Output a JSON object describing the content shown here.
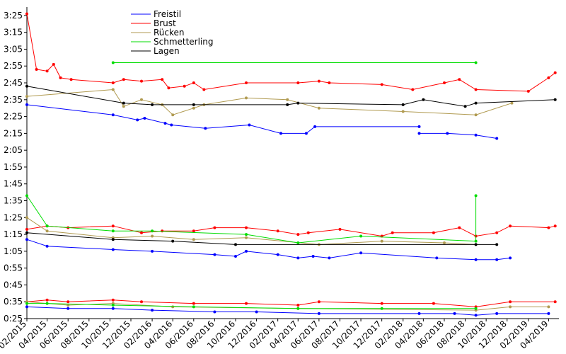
{
  "chart_data": {
    "type": "line",
    "title": "",
    "xlabel": "",
    "ylabel": "",
    "grid": false,
    "legend_placement": "top-left",
    "x_range": [
      "2015-02-01",
      "2019-05-01"
    ],
    "y_range": [
      "0:25",
      "3:30"
    ],
    "x_ticks": [
      "02/2015",
      "04/2015",
      "06/2015",
      "08/2015",
      "10/2015",
      "12/2015",
      "02/2016",
      "04/2016",
      "06/2016",
      "08/2016",
      "10/2016",
      "12/2016",
      "02/2017",
      "04/2017",
      "06/2017",
      "08/2017",
      "10/2017",
      "12/2017",
      "02/2018",
      "04/2018",
      "06/2018",
      "08/2018",
      "10/2018",
      "12/2018",
      "02/2019",
      "04/2019"
    ],
    "y_ticks": [
      "0:25",
      "0:35",
      "0:45",
      "0:55",
      "1:05",
      "1:15",
      "1:25",
      "1:35",
      "1:45",
      "1:55",
      "2:05",
      "2:15",
      "2:25",
      "2:35",
      "2:45",
      "2:55",
      "3:05",
      "3:15",
      "3:25"
    ],
    "series": [
      {
        "name": "Freistil",
        "color": "#0000ff",
        "segments": [
          [
            [
              "2015-02-01",
              "2:32"
            ],
            [
              "2015-10-10",
              "2:26"
            ],
            [
              "2015-12-20",
              "2:23"
            ],
            [
              "2016-01-10",
              "2:24"
            ],
            [
              "2016-03-10",
              "2:21"
            ],
            [
              "2016-03-28",
              "2:20"
            ],
            [
              "2016-07-05",
              "2:18"
            ],
            [
              "2016-11-10",
              "2:20"
            ],
            [
              "2017-02-10",
              "2:15"
            ],
            [
              "2017-04-25",
              "2:15"
            ],
            [
              "2017-05-20",
              "2:19"
            ],
            [
              "2018-03-20",
              "2:19"
            ]
          ],
          [
            [
              "2018-03-20",
              "2:15"
            ],
            [
              "2018-06-10",
              "2:15"
            ],
            [
              "2018-09-01",
              "2:14"
            ],
            [
              "2018-11-01",
              "2:12"
            ]
          ],
          [
            [
              "2015-02-01",
              "1:12"
            ],
            [
              "2015-04-01",
              "1:08"
            ],
            [
              "2015-10-10",
              "1:06"
            ],
            [
              "2016-02-01",
              "1:05"
            ],
            [
              "2016-08-01",
              "1:03"
            ],
            [
              "2016-10-01",
              "1:02"
            ],
            [
              "2016-11-01",
              "1:05"
            ],
            [
              "2017-02-01",
              "1:03"
            ],
            [
              "2017-04-01",
              "1:01"
            ],
            [
              "2017-05-15",
              "1:02"
            ],
            [
              "2017-07-01",
              "1:01"
            ],
            [
              "2017-10-01",
              "1:04"
            ],
            [
              "2018-05-10",
              "1:01"
            ],
            [
              "2018-09-01",
              "1:00"
            ],
            [
              "2018-11-01",
              "1:00"
            ],
            [
              "2018-12-10",
              "1:01"
            ]
          ],
          [
            [
              "2015-02-01",
              "0:32"
            ],
            [
              "2015-06-01",
              "0:31"
            ],
            [
              "2015-10-10",
              "0:31"
            ],
            [
              "2016-02-01",
              "0:30"
            ],
            [
              "2016-08-01",
              "0:29"
            ],
            [
              "2016-12-01",
              "0:29"
            ],
            [
              "2017-06-01",
              "0:28"
            ],
            [
              "2018-03-20",
              "0:28"
            ],
            [
              "2018-07-01",
              "0:28"
            ],
            [
              "2018-09-01",
              "0:27"
            ],
            [
              "2018-11-01",
              "0:28"
            ],
            [
              "2019-04-01",
              "0:28"
            ]
          ]
        ]
      },
      {
        "name": "Brust",
        "color": "#ff0000",
        "segments": [
          [
            [
              "2015-02-01",
              "3:26"
            ],
            [
              "2015-03-01",
              "2:53"
            ],
            [
              "2015-04-01",
              "2:52"
            ],
            [
              "2015-04-20",
              "2:56"
            ],
            [
              "2015-05-10",
              "2:48"
            ],
            [
              "2015-06-10",
              "2:47"
            ],
            [
              "2015-10-10",
              "2:45"
            ],
            [
              "2015-11-10",
              "2:47"
            ],
            [
              "2016-01-01",
              "2:46"
            ],
            [
              "2016-03-01",
              "2:47"
            ],
            [
              "2016-03-20",
              "2:42"
            ],
            [
              "2016-05-05",
              "2:43"
            ],
            [
              "2016-06-01",
              "2:45"
            ],
            [
              "2016-07-01",
              "2:41"
            ],
            [
              "2016-11-01",
              "2:45"
            ],
            [
              "2017-04-01",
              "2:45"
            ],
            [
              "2017-06-01",
              "2:46"
            ],
            [
              "2017-07-01",
              "2:45"
            ],
            [
              "2017-12-01",
              "2:44"
            ],
            [
              "2018-03-01",
              "2:41"
            ],
            [
              "2018-06-01",
              "2:45"
            ],
            [
              "2018-07-15",
              "2:47"
            ],
            [
              "2018-09-01",
              "2:41"
            ],
            [
              "2019-02-01",
              "2:40"
            ],
            [
              "2019-04-01",
              "2:48"
            ],
            [
              "2019-04-20",
              "2:51"
            ]
          ],
          [
            [
              "2015-02-01",
              "1:18"
            ],
            [
              "2015-04-01",
              "1:20"
            ],
            [
              "2015-06-01",
              "1:19"
            ],
            [
              "2015-10-10",
              "1:20"
            ],
            [
              "2016-01-01",
              "1:16"
            ],
            [
              "2016-03-01",
              "1:17"
            ],
            [
              "2016-06-01",
              "1:17"
            ],
            [
              "2016-08-01",
              "1:19"
            ],
            [
              "2016-11-01",
              "1:19"
            ],
            [
              "2017-02-01",
              "1:17"
            ],
            [
              "2017-04-01",
              "1:15"
            ],
            [
              "2017-05-01",
              "1:16"
            ],
            [
              "2017-08-01",
              "1:18"
            ],
            [
              "2017-12-01",
              "1:14"
            ],
            [
              "2018-01-01",
              "1:16"
            ],
            [
              "2018-05-01",
              "1:16"
            ],
            [
              "2018-07-15",
              "1:19"
            ],
            [
              "2018-09-01",
              "1:14"
            ],
            [
              "2018-11-01",
              "1:16"
            ],
            [
              "2018-12-10",
              "1:20"
            ],
            [
              "2019-04-01",
              "1:19"
            ],
            [
              "2019-04-20",
              "1:20"
            ]
          ],
          [
            [
              "2015-02-01",
              "0:35"
            ],
            [
              "2015-04-01",
              "0:36"
            ],
            [
              "2015-06-01",
              "0:35"
            ],
            [
              "2015-10-10",
              "0:36"
            ],
            [
              "2016-01-01",
              "0:35"
            ],
            [
              "2016-06-01",
              "0:34"
            ],
            [
              "2016-11-01",
              "0:34"
            ],
            [
              "2017-04-01",
              "0:33"
            ],
            [
              "2017-06-01",
              "0:35"
            ],
            [
              "2017-12-01",
              "0:34"
            ],
            [
              "2018-05-01",
              "0:34"
            ],
            [
              "2018-09-01",
              "0:32"
            ],
            [
              "2018-12-10",
              "0:35"
            ],
            [
              "2019-04-20",
              "0:35"
            ]
          ]
        ]
      },
      {
        "name": "Rücken",
        "color": "#b09a50",
        "segments": [
          [
            [
              "2015-02-01",
              "2:37"
            ],
            [
              "2015-10-10",
              "2:41"
            ],
            [
              "2015-11-10",
              "2:31"
            ],
            [
              "2016-01-01",
              "2:35"
            ],
            [
              "2016-03-01",
              "2:32"
            ],
            [
              "2016-04-01",
              "2:26"
            ],
            [
              "2016-06-01",
              "2:30"
            ],
            [
              "2016-07-01",
              "2:32"
            ],
            [
              "2016-11-01",
              "2:36"
            ],
            [
              "2017-03-01",
              "2:35"
            ],
            [
              "2017-06-01",
              "2:30"
            ],
            [
              "2018-02-01",
              "2:28"
            ],
            [
              "2018-09-01",
              "2:26"
            ],
            [
              "2018-12-15",
              "2:33"
            ]
          ],
          [
            [
              "2015-02-01",
              "1:25"
            ],
            [
              "2015-04-01",
              "1:17"
            ],
            [
              "2015-10-10",
              "1:13"
            ],
            [
              "2016-02-01",
              "1:14"
            ],
            [
              "2016-06-01",
              "1:12"
            ],
            [
              "2016-11-01",
              "1:13"
            ],
            [
              "2017-06-01",
              "1:09"
            ],
            [
              "2017-12-01",
              "1:11"
            ],
            [
              "2018-06-01",
              "1:10"
            ],
            [
              "2018-09-01",
              "1:09"
            ]
          ],
          [
            [
              "2015-02-01",
              "0:35"
            ],
            [
              "2015-06-01",
              "0:33"
            ],
            [
              "2015-10-10",
              "0:34"
            ],
            [
              "2016-04-01",
              "0:32"
            ],
            [
              "2017-04-01",
              "0:31"
            ],
            [
              "2018-09-01",
              "0:30"
            ],
            [
              "2018-12-10",
              "0:32"
            ],
            [
              "2019-04-01",
              "0:32"
            ]
          ]
        ]
      },
      {
        "name": "Schmetterling",
        "color": "#00dd00",
        "segments": [
          [
            [
              "2015-10-10",
              "2:57"
            ],
            [
              "2018-09-01",
              "2:57"
            ]
          ],
          [
            [
              "2015-02-01",
              "1:38"
            ],
            [
              "2015-04-01",
              "1:20"
            ],
            [
              "2015-10-10",
              "1:17"
            ],
            [
              "2016-02-01",
              "1:17"
            ],
            [
              "2016-11-01",
              "1:15"
            ],
            [
              "2017-04-01",
              "1:10"
            ],
            [
              "2017-10-01",
              "1:14"
            ],
            [
              "2018-09-01",
              "1:11"
            ],
            [
              "2018-09-01",
              "1:38"
            ]
          ],
          [
            [
              "2015-02-01",
              "0:34"
            ],
            [
              "2015-04-01",
              "0:34"
            ],
            [
              "2015-10-10",
              "0:33"
            ],
            [
              "2016-06-01",
              "0:32"
            ],
            [
              "2017-04-01",
              "0:31"
            ],
            [
              "2017-12-01",
              "0:31"
            ],
            [
              "2018-09-01",
              "0:31"
            ]
          ]
        ]
      },
      {
        "name": "Lagen",
        "color": "#000000",
        "segments": [
          [
            [
              "2015-02-01",
              "2:43"
            ],
            [
              "2015-11-10",
              "2:33"
            ],
            [
              "2016-02-01",
              "2:32"
            ],
            [
              "2016-06-01",
              "2:32"
            ],
            [
              "2017-03-01",
              "2:32"
            ],
            [
              "2017-04-01",
              "2:33"
            ],
            [
              "2018-02-01",
              "2:32"
            ],
            [
              "2018-04-01",
              "2:35"
            ],
            [
              "2018-08-01",
              "2:31"
            ],
            [
              "2018-09-01",
              "2:33"
            ],
            [
              "2019-04-20",
              "2:35"
            ]
          ],
          [
            [
              "2015-02-01",
              "1:16"
            ],
            [
              "2015-10-10",
              "1:12"
            ],
            [
              "2016-04-01",
              "1:11"
            ],
            [
              "2016-10-01",
              "1:09"
            ],
            [
              "2018-09-01",
              "1:09"
            ],
            [
              "2018-11-01",
              "1:09"
            ]
          ]
        ]
      }
    ]
  }
}
